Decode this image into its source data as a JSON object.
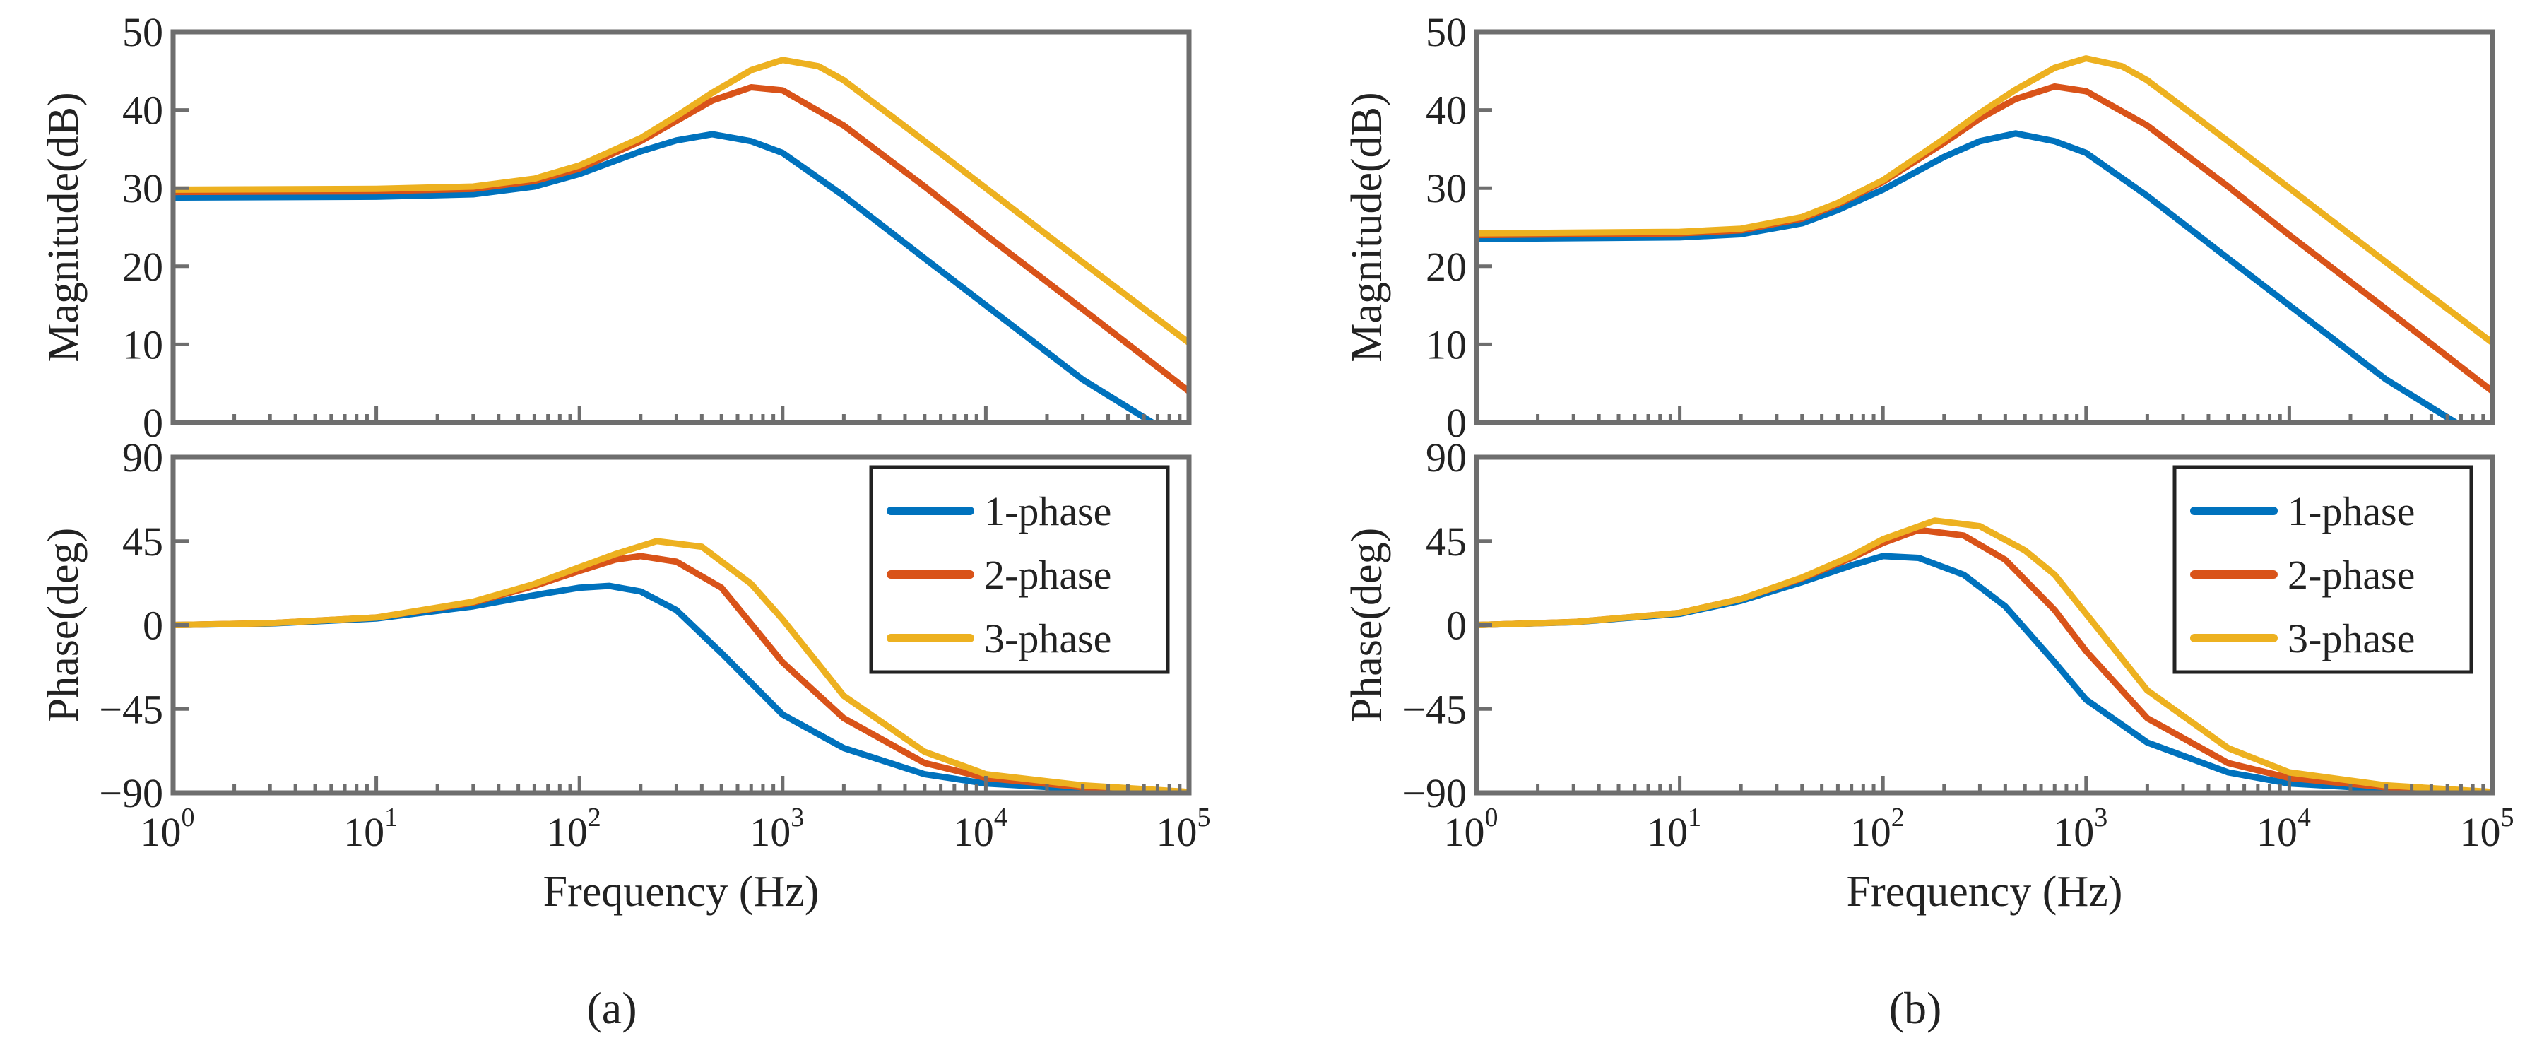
{
  "colors": {
    "1-phase": "#0072BD",
    "2-phase": "#D95319",
    "3-phase": "#EDB120"
  },
  "chart_data": [
    {
      "panel_label": "(a)",
      "subplots": [
        {
          "type": "line",
          "xlabel": "",
          "ylabel": "Magnitude(dB)",
          "x_scale": "log",
          "xlim": [
            1,
            100000
          ],
          "ylim": [
            0,
            50
          ],
          "yticks": [
            0,
            10,
            20,
            30,
            40,
            50
          ],
          "ytick_labels": [
            "0",
            "10",
            "20",
            "30",
            "40",
            "50"
          ],
          "legend": null,
          "series": [
            {
              "name": "1-phase",
              "x": [
                1,
                10,
                30,
                60,
                100,
                200,
                300,
                450,
                700,
                1000,
                2000,
                5000,
                10000,
                30000,
                66000
              ],
              "y": [
                28.8,
                28.9,
                29.2,
                30.2,
                31.8,
                34.7,
                36.1,
                36.9,
                36.0,
                34.5,
                29.0,
                21.0,
                15.0,
                5.5,
                0
              ]
            },
            {
              "name": "2-phase",
              "x": [
                1,
                10,
                30,
                60,
                100,
                200,
                300,
                450,
                700,
                1000,
                2000,
                5000,
                10000,
                30000,
                100000
              ],
              "y": [
                29.5,
                29.6,
                29.9,
                30.9,
                32.5,
                36.0,
                38.6,
                41.2,
                42.9,
                42.5,
                38.0,
                30.2,
                24.0,
                14.5,
                4.0
              ]
            },
            {
              "name": "3-phase",
              "x": [
                1,
                10,
                30,
                60,
                100,
                200,
                300,
                450,
                700,
                1000,
                1500,
                2000,
                5000,
                10000,
                30000,
                100000
              ],
              "y": [
                29.8,
                29.9,
                30.2,
                31.2,
                32.9,
                36.4,
                39.2,
                42.2,
                45.1,
                46.4,
                45.6,
                43.8,
                36.0,
                30.0,
                20.5,
                10.2
              ]
            }
          ]
        },
        {
          "type": "line",
          "xlabel": "Frequency  (Hz)",
          "ylabel": "Phase(deg)",
          "x_scale": "log",
          "xlim": [
            1,
            100000
          ],
          "ylim": [
            -90,
            90
          ],
          "yticks": [
            -90,
            -45,
            0,
            45,
            90
          ],
          "ytick_labels": [
            "−90",
            "−45",
            "0",
            "45",
            "90"
          ],
          "xtick_exponents": [
            "0",
            "1",
            "2",
            "3",
            "4",
            "5"
          ],
          "legend": "top-right",
          "series": [
            {
              "name": "1-phase",
              "x": [
                1,
                3,
                10,
                30,
                60,
                100,
                140,
                200,
                300,
                500,
                1000,
                2000,
                5000,
                10000,
                30000,
                100000
              ],
              "y": [
                0,
                0.8,
                3.5,
                10,
                16,
                20,
                21,
                18,
                8,
                -15,
                -48,
                -66,
                -80,
                -85,
                -88,
                -89.5
              ]
            },
            {
              "name": "2-phase",
              "x": [
                1,
                3,
                10,
                30,
                60,
                100,
                150,
                200,
                300,
                500,
                1000,
                2000,
                5000,
                10000,
                30000,
                100000
              ],
              "y": [
                0,
                1,
                4,
                12,
                21,
                29,
                35,
                37,
                34,
                20,
                -20,
                -50,
                -74,
                -82,
                -87,
                -89.5
              ]
            },
            {
              "name": "3-phase",
              "x": [
                1,
                3,
                10,
                30,
                60,
                100,
                150,
                240,
                400,
                700,
                1000,
                2000,
                5000,
                10000,
                30000,
                100000
              ],
              "y": [
                0,
                1,
                4,
                12.5,
                22,
                31,
                38,
                45,
                42,
                22,
                3,
                -38,
                -68,
                -80,
                -86,
                -89.5
              ]
            }
          ]
        }
      ]
    },
    {
      "panel_label": "(b)",
      "subplots": [
        {
          "type": "line",
          "xlabel": "",
          "ylabel": "Magnitude(dB)",
          "x_scale": "log",
          "xlim": [
            1,
            100000
          ],
          "ylim": [
            0,
            50
          ],
          "yticks": [
            0,
            10,
            20,
            30,
            40,
            50
          ],
          "ytick_labels": [
            "0",
            "10",
            "20",
            "30",
            "40",
            "50"
          ],
          "legend": null,
          "series": [
            {
              "name": "1-phase",
              "x": [
                1,
                10,
                20,
                40,
                60,
                100,
                200,
                300,
                450,
                700,
                1000,
                2000,
                5000,
                10000,
                30000,
                66000
              ],
              "y": [
                23.5,
                23.7,
                24.1,
                25.5,
                27.2,
                29.8,
                34.0,
                36.0,
                37.0,
                36.0,
                34.5,
                29.0,
                21.0,
                15.0,
                5.5,
                0
              ]
            },
            {
              "name": "2-phase",
              "x": [
                1,
                10,
                20,
                40,
                60,
                100,
                200,
                300,
                450,
                700,
                1000,
                2000,
                5000,
                10000,
                30000,
                100000
              ],
              "y": [
                24.0,
                24.2,
                24.6,
                26.1,
                27.9,
                30.8,
                35.8,
                38.9,
                41.4,
                43.0,
                42.4,
                38.0,
                30.2,
                24.0,
                14.5,
                4.0
              ]
            },
            {
              "name": "3-phase",
              "x": [
                1,
                10,
                20,
                40,
                60,
                100,
                200,
                300,
                450,
                700,
                1000,
                1500,
                2000,
                5000,
                10000,
                30000,
                100000
              ],
              "y": [
                24.2,
                24.4,
                24.8,
                26.3,
                28.1,
                31.0,
                36.3,
                39.6,
                42.6,
                45.4,
                46.6,
                45.6,
                43.8,
                36.0,
                30.0,
                20.5,
                10.2
              ]
            }
          ]
        },
        {
          "type": "line",
          "xlabel": "Frequency  (Hz)",
          "ylabel": "Phase(deg)",
          "x_scale": "log",
          "xlim": [
            1,
            100000
          ],
          "ylim": [
            -90,
            90
          ],
          "yticks": [
            -90,
            -45,
            0,
            45,
            90
          ],
          "ytick_labels": [
            "−90",
            "−45",
            "0",
            "45",
            "90"
          ],
          "xtick_exponents": [
            "0",
            "1",
            "2",
            "3",
            "4",
            "5"
          ],
          "legend": "top-right",
          "series": [
            {
              "name": "1-phase",
              "x": [
                1,
                3,
                10,
                20,
                40,
                70,
                100,
                150,
                250,
                400,
                700,
                1000,
                2000,
                5000,
                10000,
                30000,
                100000
              ],
              "y": [
                0,
                1.5,
                6,
                13,
                23,
                32,
                37,
                36,
                27,
                10,
                -20,
                -40,
                -63,
                -79,
                -85,
                -88,
                -89.5
              ]
            },
            {
              "name": "2-phase",
              "x": [
                1,
                3,
                10,
                20,
                40,
                70,
                100,
                150,
                250,
                400,
                700,
                1000,
                2000,
                5000,
                10000,
                30000,
                100000
              ],
              "y": [
                0,
                1.6,
                6.5,
                14,
                25,
                36,
                44,
                51,
                48,
                35,
                8,
                -14,
                -50,
                -74,
                -82,
                -87,
                -89.5
              ]
            },
            {
              "name": "3-phase",
              "x": [
                1,
                3,
                10,
                20,
                40,
                70,
                100,
                180,
                300,
                500,
                700,
                1000,
                2000,
                5000,
                10000,
                30000,
                100000
              ],
              "y": [
                0,
                1.6,
                6.5,
                14,
                25.5,
                37,
                46,
                56,
                53,
                40,
                27,
                6,
                -35,
                -66,
                -79,
                -86,
                -89.5
              ]
            }
          ]
        }
      ]
    }
  ]
}
